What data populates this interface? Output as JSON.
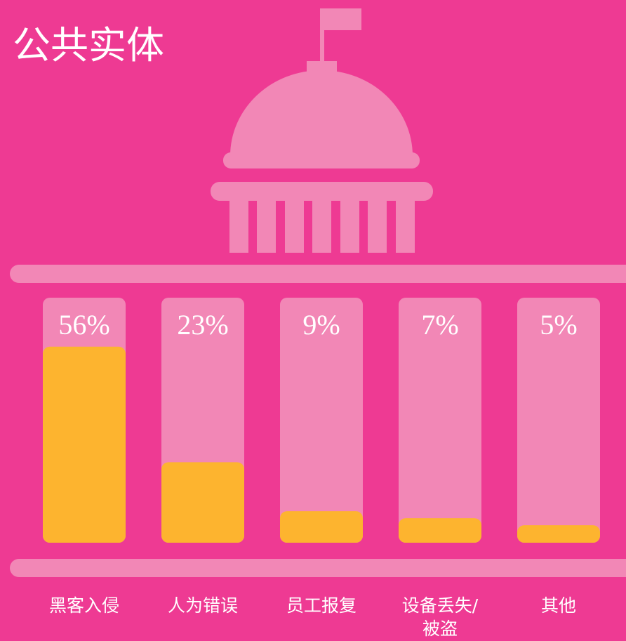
{
  "chart_data": {
    "type": "bar",
    "title": "公共实体",
    "categories": [
      "黑客入侵",
      "人为错误",
      "员工报复",
      "设备丢失/被盗",
      "其他"
    ],
    "values": [
      56,
      23,
      9,
      7,
      5
    ],
    "value_labels": [
      "56%",
      "23%",
      "9%",
      "7%",
      "5%"
    ],
    "color": "#fdb42f",
    "ylim": [
      0,
      70
    ]
  }
}
